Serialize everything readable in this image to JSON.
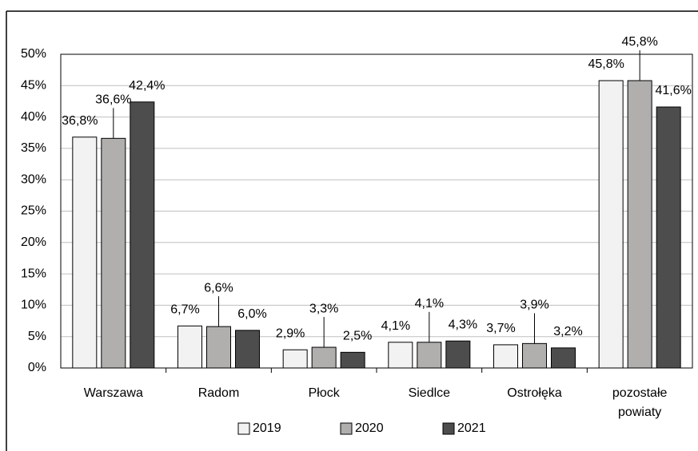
{
  "chart_data": {
    "type": "bar",
    "categories": [
      "Warszawa",
      "Radom",
      "Płock",
      "Siedlce",
      "Ostrołęka",
      "pozostałe powiaty"
    ],
    "series": [
      {
        "name": "2019",
        "color": "#f2f2f2",
        "values": [
          36.8,
          6.7,
          2.9,
          4.1,
          3.7,
          45.8
        ],
        "value_labels": [
          "36,8%",
          "6,7%",
          "2,9%",
          "4,1%",
          "3,7%",
          "45,8%"
        ]
      },
      {
        "name": "2020",
        "color": "#b1aeae",
        "values": [
          36.6,
          6.6,
          3.3,
          4.1,
          3.9,
          45.8
        ],
        "value_labels": [
          "36,6%",
          "6,6%",
          "3,3%",
          "4,1%",
          "3,9%",
          "45,8%"
        ]
      },
      {
        "name": "2021",
        "color": "#4d4d4d",
        "values": [
          42.4,
          6.0,
          2.5,
          4.3,
          3.2,
          41.6
        ],
        "value_labels": [
          "42,4%",
          "6,0%",
          "2,5%",
          "4,3%",
          "3,2%",
          "41,6%"
        ]
      }
    ],
    "ylim": [
      0,
      50
    ],
    "yticks": [
      {
        "value": 0,
        "label": "0%"
      },
      {
        "value": 5,
        "label": "5%"
      },
      {
        "value": 10,
        "label": "10%"
      },
      {
        "value": 15,
        "label": "15%"
      },
      {
        "value": 20,
        "label": "20%"
      },
      {
        "value": 25,
        "label": "25%"
      },
      {
        "value": 30,
        "label": "30%"
      },
      {
        "value": 35,
        "label": "35%"
      },
      {
        "value": 40,
        "label": "40%"
      },
      {
        "value": 45,
        "label": "45%"
      },
      {
        "value": 50,
        "label": "50%"
      }
    ],
    "grid": true,
    "legend": "bottom"
  }
}
